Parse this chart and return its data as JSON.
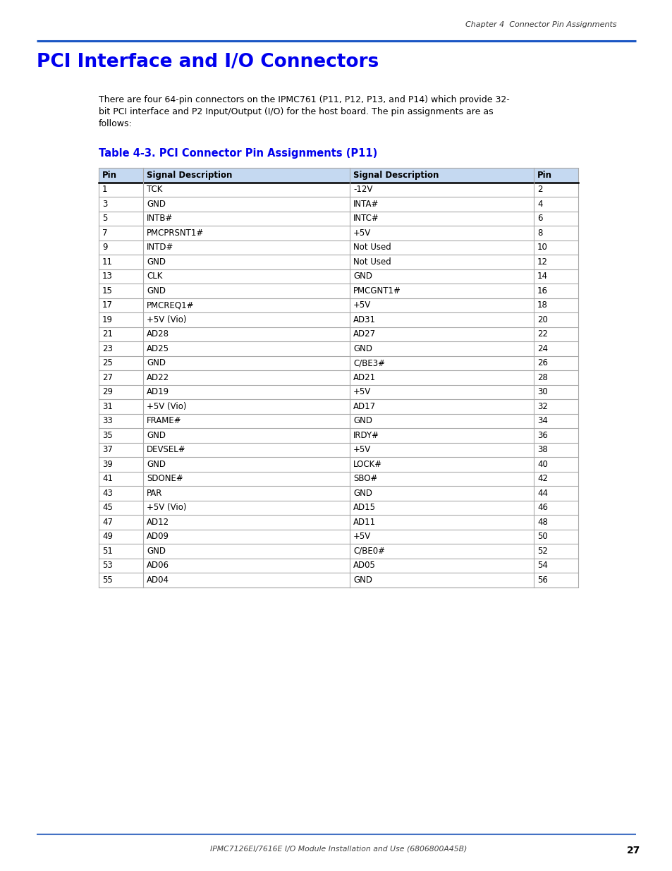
{
  "page_title": "Chapter 4  Connector Pin Assignments",
  "section_title": "PCI Interface and I/O Connectors",
  "body_line1": "There are four 64-pin connectors on the IPMC761 (P11, P12, P13, and P14) which provide 32-",
  "body_line2": "bit PCI interface and P2 Input/Output (I/O) for the host board. The pin assignments are as",
  "body_line3": "follows:",
  "table_title": "Table 4-3. PCI Connector Pin Assignments (P11)",
  "col_headers": [
    "Pin",
    "Signal Description",
    "Signal Description",
    "Pin"
  ],
  "rows": [
    [
      "1",
      "TCK",
      "-12V",
      "2"
    ],
    [
      "3",
      "GND",
      "INTA#",
      "4"
    ],
    [
      "5",
      "INTB#",
      "INTC#",
      "6"
    ],
    [
      "7",
      "PMCPRSNT1#",
      "+5V",
      "8"
    ],
    [
      "9",
      "INTD#",
      "Not Used",
      "10"
    ],
    [
      "11",
      "GND",
      "Not Used",
      "12"
    ],
    [
      "13",
      "CLK",
      "GND",
      "14"
    ],
    [
      "15",
      "GND",
      "PMCGNT1#",
      "16"
    ],
    [
      "17",
      "PMCREQ1#",
      "+5V",
      "18"
    ],
    [
      "19",
      "+5V (Vio)",
      "AD31",
      "20"
    ],
    [
      "21",
      "AD28",
      "AD27",
      "22"
    ],
    [
      "23",
      "AD25",
      "GND",
      "24"
    ],
    [
      "25",
      "GND",
      "C/BE3#",
      "26"
    ],
    [
      "27",
      "AD22",
      "AD21",
      "28"
    ],
    [
      "29",
      "AD19",
      "+5V",
      "30"
    ],
    [
      "31",
      "+5V (Vio)",
      "AD17",
      "32"
    ],
    [
      "33",
      "FRAME#",
      "GND",
      "34"
    ],
    [
      "35",
      "GND",
      "IRDY#",
      "36"
    ],
    [
      "37",
      "DEVSEL#",
      "+5V",
      "38"
    ],
    [
      "39",
      "GND",
      "LOCK#",
      "40"
    ],
    [
      "41",
      "SDONE#",
      "SBO#",
      "42"
    ],
    [
      "43",
      "PAR",
      "GND",
      "44"
    ],
    [
      "45",
      "+5V (Vio)",
      "AD15",
      "46"
    ],
    [
      "47",
      "AD12",
      "AD11",
      "48"
    ],
    [
      "49",
      "AD09",
      "+5V",
      "50"
    ],
    [
      "51",
      "GND",
      "C/BE0#",
      "52"
    ],
    [
      "53",
      "AD06",
      "AD05",
      "54"
    ],
    [
      "55",
      "AD04",
      "GND",
      "56"
    ]
  ],
  "header_bg": "#c5d9f1",
  "header_text_color": "#000000",
  "section_title_color": "#0000ee",
  "table_title_color": "#0000ee",
  "page_title_color": "#333333",
  "body_text_color": "#000000",
  "footer_text": "IPMC7126EI/7616E I/O Module Installation and Use (6806800A45B)",
  "footer_page": "27",
  "top_line_color": "#1a56c4",
  "bottom_line_color": "#4472c4",
  "grid_color": "#aaaaaa",
  "header_bottom_color": "#000000"
}
